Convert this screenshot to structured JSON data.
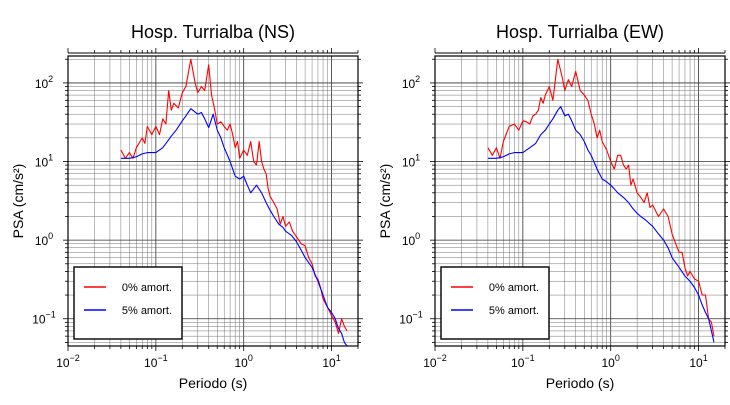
{
  "chart_data": [
    {
      "type": "line",
      "title": "Hosp. Turrialba (NS)",
      "xlabel": "Periodo (s)",
      "ylabel": "PSA (cm/s²)",
      "x_scale": "log",
      "y_scale": "log",
      "xlim": [
        0.01,
        20
      ],
      "ylim": [
        0.045,
        220
      ],
      "grid": true,
      "legend_position": "bottom-left",
      "x_ticks": [
        {
          "value": 0.01,
          "base": "10",
          "exp": "−2"
        },
        {
          "value": 0.1,
          "base": "10",
          "exp": "−1"
        },
        {
          "value": 1,
          "base": "10",
          "exp": "0"
        },
        {
          "value": 10,
          "base": "10",
          "exp": "1"
        }
      ],
      "y_ticks": [
        {
          "value": 0.1,
          "base": "10",
          "exp": "−1"
        },
        {
          "value": 1,
          "base": "10",
          "exp": "0"
        },
        {
          "value": 10,
          "base": "10",
          "exp": "1"
        },
        {
          "value": 100,
          "base": "10",
          "exp": "2"
        }
      ],
      "series": [
        {
          "name": "0% amort.",
          "color": "#ff0000",
          "points": [
            [
              0.04,
              14
            ],
            [
              0.045,
              11
            ],
            [
              0.05,
              13
            ],
            [
              0.055,
              11
            ],
            [
              0.06,
              15
            ],
            [
              0.07,
              20
            ],
            [
              0.075,
              17
            ],
            [
              0.08,
              28
            ],
            [
              0.09,
              22
            ],
            [
              0.1,
              28
            ],
            [
              0.11,
              22
            ],
            [
              0.12,
              35
            ],
            [
              0.13,
              30
            ],
            [
              0.14,
              80
            ],
            [
              0.15,
              45
            ],
            [
              0.16,
              55
            ],
            [
              0.18,
              48
            ],
            [
              0.2,
              75
            ],
            [
              0.22,
              90
            ],
            [
              0.25,
              200
            ],
            [
              0.28,
              100
            ],
            [
              0.3,
              75
            ],
            [
              0.33,
              90
            ],
            [
              0.36,
              80
            ],
            [
              0.4,
              170
            ],
            [
              0.43,
              70
            ],
            [
              0.46,
              50
            ],
            [
              0.5,
              30
            ],
            [
              0.55,
              32
            ],
            [
              0.6,
              28
            ],
            [
              0.65,
              25
            ],
            [
              0.7,
              30
            ],
            [
              0.75,
              22
            ],
            [
              0.8,
              15
            ],
            [
              0.85,
              18
            ],
            [
              0.9,
              11
            ],
            [
              1.0,
              14
            ],
            [
              1.1,
              12
            ],
            [
              1.2,
              18
            ],
            [
              1.3,
              10
            ],
            [
              1.4,
              9
            ],
            [
              1.5,
              18
            ],
            [
              1.6,
              10
            ],
            [
              1.7,
              8
            ],
            [
              1.8,
              7
            ],
            [
              1.9,
              4.5
            ],
            [
              2.0,
              3.6
            ],
            [
              2.2,
              3.0
            ],
            [
              2.4,
              2.5
            ],
            [
              2.6,
              1.6
            ],
            [
              2.8,
              2.0
            ],
            [
              3.0,
              1.5
            ],
            [
              3.3,
              1.7
            ],
            [
              3.6,
              1.3
            ],
            [
              4.0,
              1.1
            ],
            [
              4.5,
              0.9
            ],
            [
              5.0,
              0.85
            ],
            [
              5.5,
              0.6
            ],
            [
              6.0,
              0.5
            ],
            [
              6.5,
              0.35
            ],
            [
              7.0,
              0.32
            ],
            [
              7.5,
              0.25
            ],
            [
              8.0,
              0.18
            ],
            [
              9.0,
              0.14
            ],
            [
              10.0,
              0.11
            ],
            [
              11.0,
              0.09
            ],
            [
              12.0,
              0.065
            ],
            [
              13.0,
              0.1
            ],
            [
              14.0,
              0.08
            ],
            [
              15.0,
              0.07
            ]
          ]
        },
        {
          "name": "5% amort.",
          "color": "#0000ff",
          "points": [
            [
              0.04,
              11
            ],
            [
              0.05,
              11
            ],
            [
              0.06,
              11.5
            ],
            [
              0.07,
              12.5
            ],
            [
              0.08,
              13
            ],
            [
              0.1,
              13
            ],
            [
              0.12,
              15
            ],
            [
              0.13,
              17
            ],
            [
              0.15,
              21
            ],
            [
              0.17,
              25
            ],
            [
              0.2,
              33
            ],
            [
              0.22,
              38
            ],
            [
              0.25,
              47
            ],
            [
              0.27,
              44
            ],
            [
              0.3,
              40
            ],
            [
              0.33,
              42
            ],
            [
              0.36,
              35
            ],
            [
              0.4,
              27
            ],
            [
              0.45,
              40
            ],
            [
              0.5,
              25
            ],
            [
              0.55,
              20
            ],
            [
              0.6,
              15
            ],
            [
              0.7,
              10
            ],
            [
              0.8,
              6.5
            ],
            [
              0.9,
              6.0
            ],
            [
              1.0,
              6.5
            ],
            [
              1.1,
              5.0
            ],
            [
              1.2,
              4.0
            ],
            [
              1.4,
              5.0
            ],
            [
              1.6,
              4.0
            ],
            [
              1.8,
              3.0
            ],
            [
              2.0,
              2.4
            ],
            [
              2.2,
              2.0
            ],
            [
              2.5,
              1.6
            ],
            [
              2.8,
              1.45
            ],
            [
              3.0,
              1.3
            ],
            [
              3.5,
              1.15
            ],
            [
              4.0,
              0.95
            ],
            [
              4.5,
              0.75
            ],
            [
              5.0,
              0.6
            ],
            [
              6.0,
              0.45
            ],
            [
              7.0,
              0.3
            ],
            [
              8.0,
              0.2
            ],
            [
              9.0,
              0.14
            ],
            [
              10.0,
              0.12
            ],
            [
              11.0,
              0.1
            ],
            [
              12.0,
              0.075
            ],
            [
              13.0,
              0.065
            ],
            [
              14.0,
              0.05
            ],
            [
              15.0,
              0.045
            ]
          ]
        }
      ]
    },
    {
      "type": "line",
      "title": "Hosp. Turrialba (EW)",
      "xlabel": "Periodo (s)",
      "ylabel": "PSA (cm/s²)",
      "x_scale": "log",
      "y_scale": "log",
      "xlim": [
        0.01,
        20
      ],
      "ylim": [
        0.045,
        220
      ],
      "grid": true,
      "legend_position": "bottom-left",
      "x_ticks": [
        {
          "value": 0.01,
          "base": "10",
          "exp": "−2"
        },
        {
          "value": 0.1,
          "base": "10",
          "exp": "−1"
        },
        {
          "value": 1,
          "base": "10",
          "exp": "0"
        },
        {
          "value": 10,
          "base": "10",
          "exp": "1"
        }
      ],
      "y_ticks": [
        {
          "value": 0.1,
          "base": "10",
          "exp": "−1"
        },
        {
          "value": 1,
          "base": "10",
          "exp": "0"
        },
        {
          "value": 10,
          "base": "10",
          "exp": "1"
        },
        {
          "value": 100,
          "base": "10",
          "exp": "2"
        }
      ],
      "series": [
        {
          "name": "0% amort.",
          "color": "#ff0000",
          "points": [
            [
              0.04,
              15
            ],
            [
              0.045,
              12
            ],
            [
              0.05,
              15
            ],
            [
              0.055,
              11
            ],
            [
              0.06,
              18
            ],
            [
              0.07,
              28
            ],
            [
              0.08,
              30
            ],
            [
              0.09,
              25
            ],
            [
              0.1,
              33
            ],
            [
              0.11,
              32
            ],
            [
              0.12,
              30
            ],
            [
              0.13,
              38
            ],
            [
              0.14,
              40
            ],
            [
              0.15,
              45
            ],
            [
              0.16,
              65
            ],
            [
              0.17,
              55
            ],
            [
              0.18,
              70
            ],
            [
              0.2,
              90
            ],
            [
              0.22,
              60
            ],
            [
              0.25,
              200
            ],
            [
              0.28,
              120
            ],
            [
              0.3,
              80
            ],
            [
              0.33,
              110
            ],
            [
              0.36,
              90
            ],
            [
              0.4,
              140
            ],
            [
              0.45,
              80
            ],
            [
              0.5,
              70
            ],
            [
              0.55,
              60
            ],
            [
              0.6,
              40
            ],
            [
              0.65,
              30
            ],
            [
              0.7,
              20
            ],
            [
              0.75,
              25
            ],
            [
              0.8,
              18
            ],
            [
              0.9,
              14
            ],
            [
              1.0,
              10
            ],
            [
              1.1,
              8
            ],
            [
              1.2,
              12
            ],
            [
              1.3,
              12
            ],
            [
              1.4,
              9
            ],
            [
              1.5,
              8
            ],
            [
              1.6,
              9
            ],
            [
              1.7,
              5
            ],
            [
              1.8,
              6
            ],
            [
              2.0,
              4.0
            ],
            [
              2.2,
              3.5
            ],
            [
              2.4,
              3.0
            ],
            [
              2.6,
              4.0
            ],
            [
              2.8,
              2.6
            ],
            [
              3.0,
              2.8
            ],
            [
              3.5,
              2.0
            ],
            [
              4.0,
              2.5
            ],
            [
              4.5,
              2.0
            ],
            [
              5.0,
              1.2
            ],
            [
              5.5,
              0.9
            ],
            [
              6.0,
              0.7
            ],
            [
              6.5,
              0.7
            ],
            [
              7.0,
              0.45
            ],
            [
              7.5,
              0.35
            ],
            [
              8.0,
              0.4
            ],
            [
              9.0,
              0.32
            ],
            [
              10.0,
              0.3
            ],
            [
              11.0,
              0.2
            ],
            [
              12.0,
              0.2
            ],
            [
              13.0,
              0.1
            ],
            [
              14.0,
              0.09
            ],
            [
              15.0,
              0.06
            ]
          ]
        },
        {
          "name": "5% amort.",
          "color": "#0000ff",
          "points": [
            [
              0.04,
              11
            ],
            [
              0.05,
              11
            ],
            [
              0.06,
              11.5
            ],
            [
              0.07,
              12.5
            ],
            [
              0.08,
              13
            ],
            [
              0.1,
              13
            ],
            [
              0.12,
              15
            ],
            [
              0.14,
              17
            ],
            [
              0.16,
              22
            ],
            [
              0.18,
              25
            ],
            [
              0.2,
              30
            ],
            [
              0.22,
              35
            ],
            [
              0.25,
              45
            ],
            [
              0.27,
              50
            ],
            [
              0.3,
              38
            ],
            [
              0.33,
              40
            ],
            [
              0.36,
              33
            ],
            [
              0.4,
              25
            ],
            [
              0.45,
              22
            ],
            [
              0.5,
              18
            ],
            [
              0.55,
              14
            ],
            [
              0.6,
              12
            ],
            [
              0.7,
              8
            ],
            [
              0.8,
              6.0
            ],
            [
              0.9,
              5.5
            ],
            [
              1.0,
              5.0
            ],
            [
              1.1,
              4.5
            ],
            [
              1.2,
              4.0
            ],
            [
              1.4,
              3.5
            ],
            [
              1.6,
              3.0
            ],
            [
              1.8,
              2.5
            ],
            [
              2.0,
              2.2
            ],
            [
              2.2,
              2.0
            ],
            [
              2.5,
              1.8
            ],
            [
              3.0,
              1.5
            ],
            [
              3.5,
              1.2
            ],
            [
              4.0,
              1.0
            ],
            [
              4.5,
              0.8
            ],
            [
              5.0,
              0.6
            ],
            [
              6.0,
              0.45
            ],
            [
              7.0,
              0.35
            ],
            [
              8.0,
              0.3
            ],
            [
              9.0,
              0.25
            ],
            [
              10.0,
              0.2
            ],
            [
              11.0,
              0.15
            ],
            [
              12.0,
              0.12
            ],
            [
              13.0,
              0.1
            ],
            [
              14.0,
              0.07
            ],
            [
              15.0,
              0.05
            ]
          ]
        }
      ]
    }
  ]
}
